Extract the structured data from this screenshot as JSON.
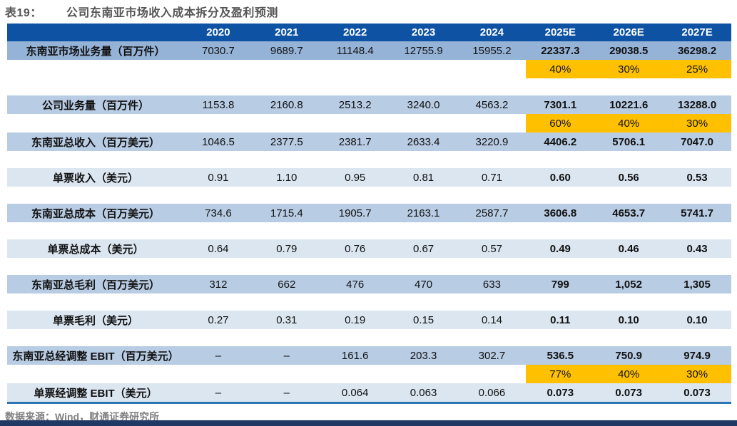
{
  "title": {
    "prefix": "表19：",
    "text": "公司东南亚市场收入成本拆分及盈利预测"
  },
  "footer": {
    "source": "数据来源：Wind，财通证券研究所"
  },
  "colors": {
    "header_bg": "#0D52A3",
    "row_strong": "#95B3D7",
    "row_medium": "#B8CCE4",
    "row_light": "#DCE6F1",
    "highlight": "#FFC000",
    "table_border": "#2E75B6",
    "bottom_bar": "#1F3864",
    "title_text": "#555555",
    "footer_text": "#808080"
  },
  "table": {
    "forecast_start_index": 5,
    "columns": [
      "2020",
      "2021",
      "2022",
      "2023",
      "2024",
      "2025E",
      "2026E",
      "2027E"
    ],
    "rows": [
      {
        "kind": "data",
        "shade": "strong",
        "label": "东南亚市场业务量（百万件）",
        "values": [
          "7030.7",
          "9689.7",
          "11148.4",
          "12755.9",
          "15955.2",
          "22337.3",
          "29038.5",
          "36298.2"
        ]
      },
      {
        "kind": "growth",
        "values": [
          "40%",
          "30%",
          "25%"
        ]
      },
      {
        "kind": "spacer"
      },
      {
        "kind": "data",
        "shade": "medium",
        "label": "公司业务量（百万件）",
        "values": [
          "1153.8",
          "2160.8",
          "2513.2",
          "3240.0",
          "4563.2",
          "7301.1",
          "10221.6",
          "13288.0"
        ]
      },
      {
        "kind": "growth",
        "values": [
          "60%",
          "40%",
          "30%"
        ]
      },
      {
        "kind": "data",
        "shade": "medium",
        "label": "东南亚总收入（百万美元）",
        "values": [
          "1046.5",
          "2377.5",
          "2381.7",
          "2633.4",
          "3220.9",
          "4406.2",
          "5706.1",
          "7047.0"
        ]
      },
      {
        "kind": "spacer"
      },
      {
        "kind": "data",
        "shade": "light",
        "label": "单票收入（美元）",
        "values": [
          "0.91",
          "1.10",
          "0.95",
          "0.81",
          "0.71",
          "0.60",
          "0.56",
          "0.53"
        ]
      },
      {
        "kind": "spacer"
      },
      {
        "kind": "data",
        "shade": "medium",
        "label": "东南亚总成本（百万美元）",
        "values": [
          "734.6",
          "1715.4",
          "1905.7",
          "2163.1",
          "2587.7",
          "3606.8",
          "4653.7",
          "5741.7"
        ]
      },
      {
        "kind": "spacer"
      },
      {
        "kind": "data",
        "shade": "light",
        "label": "单票总成本（美元）",
        "values": [
          "0.64",
          "0.79",
          "0.76",
          "0.67",
          "0.57",
          "0.49",
          "0.46",
          "0.43"
        ]
      },
      {
        "kind": "spacer"
      },
      {
        "kind": "data",
        "shade": "medium",
        "label": "东南亚总毛利（百万美元）",
        "values": [
          "312",
          "662",
          "476",
          "470",
          "633",
          "799",
          "1,052",
          "1,305"
        ]
      },
      {
        "kind": "spacer"
      },
      {
        "kind": "data",
        "shade": "light",
        "label": "单票毛利（美元）",
        "values": [
          "0.27",
          "0.31",
          "0.19",
          "0.15",
          "0.14",
          "0.11",
          "0.10",
          "0.10"
        ]
      },
      {
        "kind": "spacer"
      },
      {
        "kind": "data",
        "shade": "medium",
        "label": "东南亚总经调整 EBIT（百万美元）",
        "values": [
          "–",
          "–",
          "161.6",
          "203.3",
          "302.7",
          "536.5",
          "750.9",
          "974.9"
        ]
      },
      {
        "kind": "growth",
        "values": [
          "77%",
          "40%",
          "30%"
        ]
      },
      {
        "kind": "data",
        "shade": "light",
        "label": "单票经调整 EBIT（美元）",
        "last": true,
        "values": [
          "–",
          "–",
          "0.064",
          "0.063",
          "0.066",
          "0.073",
          "0.073",
          "0.073"
        ]
      }
    ]
  }
}
